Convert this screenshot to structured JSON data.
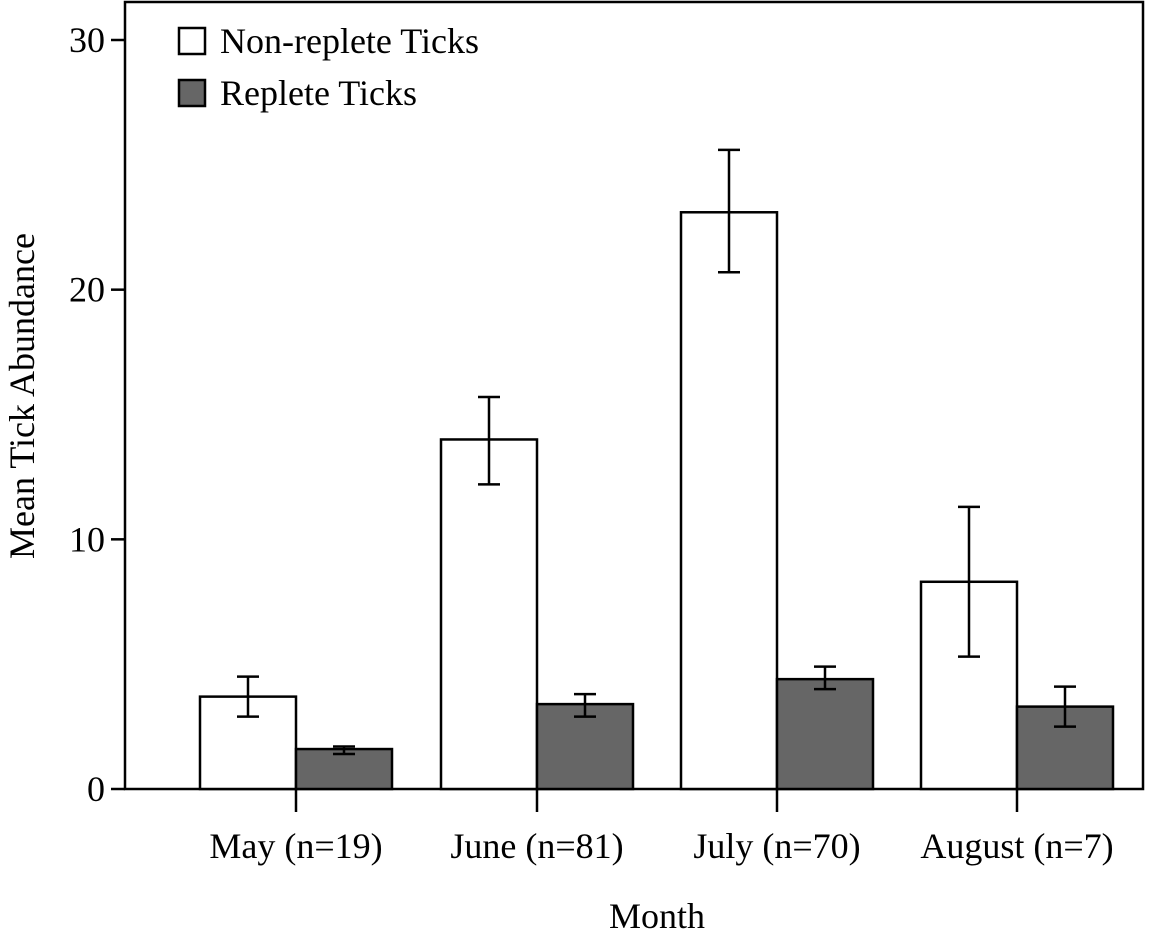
{
  "chart_data": {
    "type": "bar",
    "title": "",
    "xlabel": "Month",
    "ylabel": "Mean Tick Abundance",
    "ylim": [
      0,
      30
    ],
    "yticks": [
      "0",
      "10",
      "20",
      "30"
    ],
    "ytick_values": [
      0,
      10,
      20,
      30
    ],
    "categories": [
      "May (n=19)",
      "June (n=81)",
      "July (n=70)",
      "August (n=7)"
    ],
    "legend_position": "top-left",
    "grid": false,
    "series": [
      {
        "name": "Non-replete Ticks",
        "color": "#ffffff",
        "values": [
          3.7,
          14.0,
          23.1,
          8.3
        ],
        "err_upper": [
          4.5,
          15.7,
          25.6,
          11.3
        ],
        "err_lower": [
          2.9,
          12.2,
          20.7,
          5.3
        ]
      },
      {
        "name": "Replete Ticks",
        "color": "#666666",
        "values": [
          1.6,
          3.4,
          4.4,
          3.3
        ],
        "err_upper": [
          1.7,
          3.8,
          4.9,
          4.1
        ],
        "err_lower": [
          1.4,
          2.9,
          4.0,
          2.5
        ]
      }
    ]
  }
}
